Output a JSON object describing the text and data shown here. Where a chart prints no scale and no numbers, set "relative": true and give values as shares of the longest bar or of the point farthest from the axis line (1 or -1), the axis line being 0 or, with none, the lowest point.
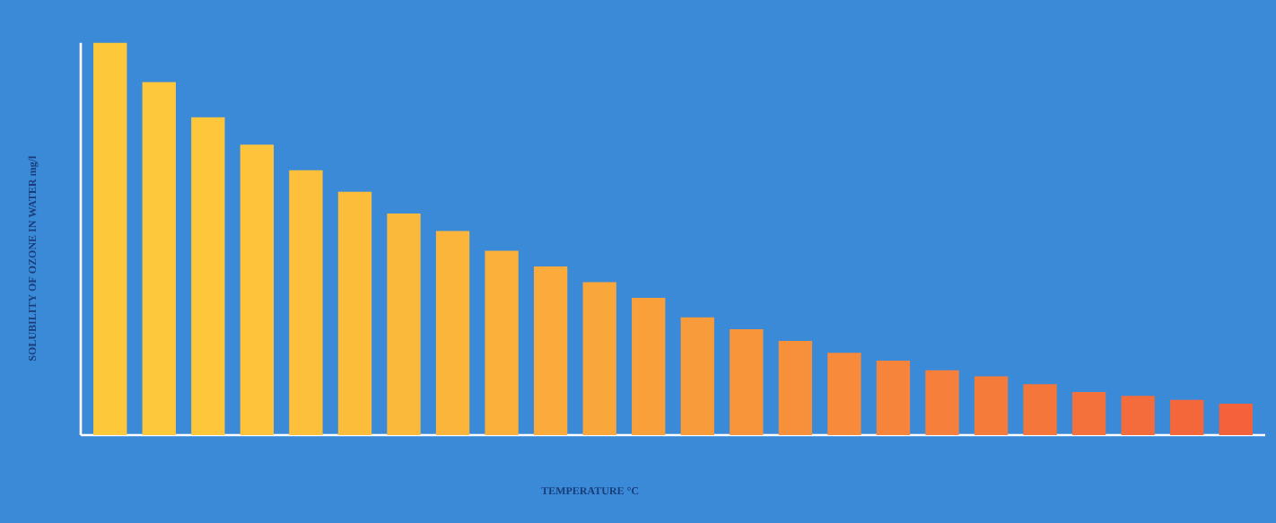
{
  "chart_data": {
    "type": "bar",
    "relative": true,
    "xlabel": "TEMPERATURE °C",
    "ylabel": "SOLUBILITY OF OZONE IN WATER mg/l",
    "categories": [
      null,
      null,
      null,
      null,
      null,
      null,
      null,
      null,
      null,
      null,
      null,
      null,
      null,
      null,
      null,
      null,
      null,
      null,
      null,
      null,
      null,
      null,
      null,
      null
    ],
    "values": [
      1.0,
      0.9,
      0.81,
      0.74,
      0.675,
      0.62,
      0.565,
      0.52,
      0.47,
      0.43,
      0.39,
      0.35,
      0.3,
      0.27,
      0.24,
      0.21,
      0.19,
      0.165,
      0.15,
      0.13,
      0.11,
      0.1,
      0.09,
      0.08
    ],
    "colors": [
      "#fdc93b",
      "#fdc83b",
      "#fdc63b",
      "#fdc43b",
      "#fcc03b",
      "#fcbd3b",
      "#fbb93b",
      "#fbb53b",
      "#fab03b",
      "#faab3b",
      "#f9a63b",
      "#f9a03b",
      "#f89b3b",
      "#f8953b",
      "#f7903b",
      "#f78a3b",
      "#f6853b",
      "#f6803b",
      "#f57b3b",
      "#f5763b",
      "#f4713b",
      "#f46c3b",
      "#f3673b",
      "#f3623b"
    ]
  }
}
